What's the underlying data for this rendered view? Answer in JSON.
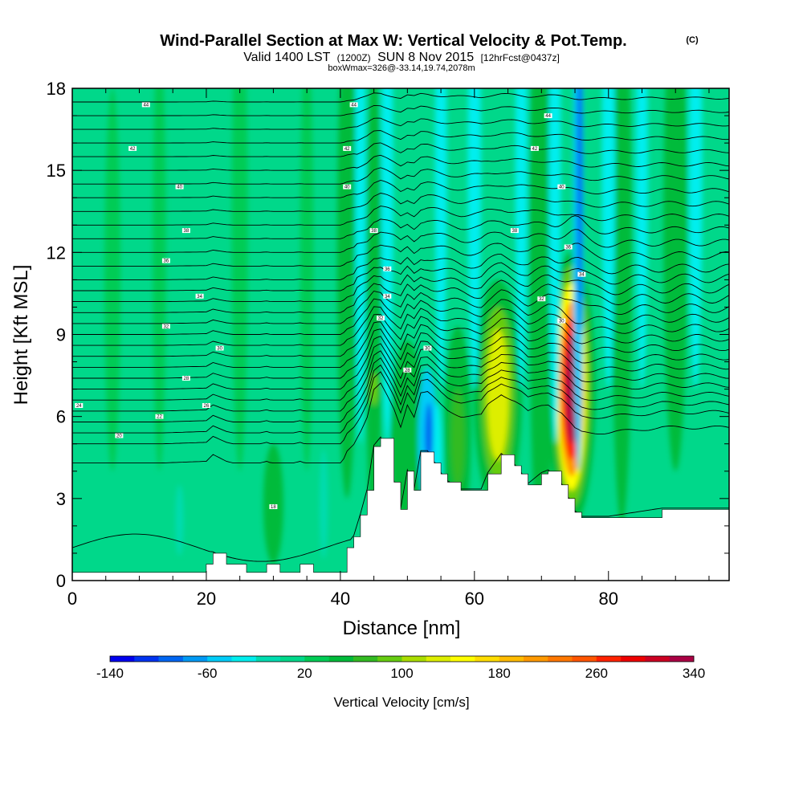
{
  "chart_data": {
    "type": "heatmap",
    "title": "Wind-Parallel Section at Max W: Vertical Velocity & Pot.Temp.",
    "title_mark": "(C)",
    "subtitle_parts": [
      "Valid 1400 LST",
      "(1200Z)",
      "SUN 8 Nov 2015",
      "[12hrFcst@0437z]"
    ],
    "subtitle2": "boxWmax=326@-33.14,19.74,2078m",
    "xlabel": "Distance [nm]",
    "ylabel": "Height [Kft MSL]",
    "xlim": [
      0,
      98
    ],
    "ylim": [
      0,
      18
    ],
    "x_ticks": [
      0,
      20,
      40,
      60,
      80
    ],
    "y_ticks": [
      0,
      3,
      6,
      9,
      12,
      15,
      18
    ],
    "colorbar": {
      "label": "Vertical Velocity [cm/s]",
      "tick_values": [
        -140,
        -60,
        20,
        100,
        180,
        260,
        340
      ],
      "levels": [
        -140,
        -120,
        -100,
        -80,
        -60,
        -40,
        -20,
        0,
        20,
        40,
        60,
        80,
        100,
        120,
        140,
        160,
        180,
        200,
        220,
        240,
        260,
        280,
        300,
        320,
        340
      ],
      "colors": [
        "#0000ee",
        "#0033f0",
        "#0066f2",
        "#0099f4",
        "#00ccf8",
        "#00eeee",
        "#00dcb0",
        "#00d88a",
        "#00cc55",
        "#00bb3a",
        "#33bb22",
        "#66cc11",
        "#aadd00",
        "#ddee00",
        "#ffff00",
        "#ffdd00",
        "#ffbb00",
        "#ff9900",
        "#ff7700",
        "#ff5500",
        "#ff2200",
        "#ee0000",
        "#cc0022",
        "#aa0044"
      ]
    },
    "terrain": {
      "unit": "Kft",
      "x": [
        0,
        20,
        21,
        23,
        26,
        29,
        31,
        34,
        36,
        39,
        40,
        41,
        42,
        43,
        44,
        45,
        46,
        48,
        49,
        50,
        51,
        52,
        53,
        54,
        55,
        56,
        58,
        61,
        62,
        64,
        66,
        67,
        68,
        70,
        71,
        73,
        74,
        75,
        76,
        80,
        88,
        98
      ],
      "y": [
        0.3,
        0.6,
        1.0,
        0.6,
        0.3,
        0.6,
        0.3,
        0.6,
        0.3,
        0.3,
        0.3,
        1.2,
        1.6,
        2.4,
        3.3,
        4.9,
        5.2,
        3.6,
        2.6,
        4.0,
        3.3,
        4.7,
        4.7,
        4.3,
        3.9,
        3.6,
        3.3,
        3.3,
        3.9,
        4.6,
        4.2,
        3.9,
        3.5,
        3.9,
        4.0,
        3.5,
        3.0,
        2.5,
        2.3,
        2.3,
        2.6,
        2.6
      ]
    },
    "vertical_velocity_cells": [
      {
        "x": 6,
        "y": 11,
        "w": 1.2,
        "h": 7,
        "v": 24
      },
      {
        "x": 13,
        "y": 12,
        "w": 1.0,
        "h": 8,
        "v": 24
      },
      {
        "x": 25,
        "y": 13,
        "w": 1.2,
        "h": 9,
        "v": 24
      },
      {
        "x": 35,
        "y": 12,
        "w": 1.0,
        "h": 8,
        "v": 24
      },
      {
        "x": 30,
        "y": 2.8,
        "w": 1.5,
        "h": 2.2,
        "v": 40
      },
      {
        "x": 41,
        "y": 12,
        "w": 1.5,
        "h": 9,
        "v": 40
      },
      {
        "x": 45,
        "y": 10,
        "w": 1.2,
        "h": 9,
        "v": 40
      },
      {
        "x": 50,
        "y": 5.2,
        "w": 2.5,
        "h": 3.6,
        "v": 40
      },
      {
        "x": 57.5,
        "y": 5.5,
        "w": 2.0,
        "h": 3.8,
        "v": 40
      },
      {
        "x": 63.5,
        "y": 6.8,
        "w": 3.6,
        "h": 4.2,
        "v": 40
      },
      {
        "x": 74.5,
        "y": 7.0,
        "w": 3.6,
        "h": 5.0,
        "v": 40
      },
      {
        "x": 70,
        "y": 12,
        "w": 1.8,
        "h": 12,
        "v": 40
      },
      {
        "x": 82,
        "y": 12,
        "w": 1.5,
        "h": 10,
        "v": 40
      },
      {
        "x": 90,
        "y": 13,
        "w": 1.8,
        "h": 9,
        "v": 40
      },
      {
        "x": 45,
        "y": 7.0,
        "w": 0.6,
        "h": 0.6,
        "v": 80
      },
      {
        "x": 57.5,
        "y": 5.2,
        "w": 1.0,
        "h": 1.8,
        "v": 60
      },
      {
        "x": 63.5,
        "y": 6.8,
        "w": 2.4,
        "h": 3.2,
        "v": 90
      },
      {
        "x": 63.5,
        "y": 6.8,
        "w": 1.6,
        "h": 2.4,
        "v": 130
      },
      {
        "x": 74.5,
        "y": 7.1,
        "w": 2.7,
        "h": 4.4,
        "v": 90
      },
      {
        "x": 74.5,
        "y": 7.1,
        "w": 2.2,
        "h": 3.8,
        "v": 150
      },
      {
        "x": 74.5,
        "y": 7.0,
        "w": 1.8,
        "h": 3.2,
        "v": 210
      },
      {
        "x": 74.5,
        "y": 7.0,
        "w": 1.4,
        "h": 2.6,
        "v": 270
      },
      {
        "x": 74.6,
        "y": 7.0,
        "w": 1.0,
        "h": 2.0,
        "v": 320
      },
      {
        "x": 16,
        "y": 2.2,
        "w": 0.6,
        "h": 1.3,
        "v": -10
      },
      {
        "x": 37.5,
        "y": 2.8,
        "w": 0.6,
        "h": 2.0,
        "v": -10
      },
      {
        "x": 43,
        "y": 14,
        "w": 0.8,
        "h": 9,
        "v": -30
      },
      {
        "x": 47,
        "y": 14,
        "w": 0.9,
        "h": 9,
        "v": -30
      },
      {
        "x": 53,
        "y": 5.2,
        "w": 1.4,
        "h": 2.6,
        "v": -50
      },
      {
        "x": 53.2,
        "y": 5.3,
        "w": 0.6,
        "h": 1.2,
        "v": -100
      },
      {
        "x": 54.5,
        "y": 4.5,
        "w": 0.7,
        "h": 2.0,
        "v": -40
      },
      {
        "x": 55,
        "y": 15,
        "w": 0.9,
        "h": 8,
        "v": -30
      },
      {
        "x": 60,
        "y": 15,
        "w": 1.0,
        "h": 8,
        "v": -30
      },
      {
        "x": 67,
        "y": 15,
        "w": 0.9,
        "h": 8,
        "v": -30
      },
      {
        "x": 72,
        "y": 15,
        "w": 0.9,
        "h": 10,
        "v": -40
      },
      {
        "x": 75.5,
        "y": 14,
        "w": 0.8,
        "h": 10,
        "v": -50
      },
      {
        "x": 75.7,
        "y": 15,
        "w": 0.4,
        "h": 6,
        "v": -100
      },
      {
        "x": 80,
        "y": 15,
        "w": 1.0,
        "h": 8,
        "v": -30
      },
      {
        "x": 85,
        "y": 15,
        "w": 0.9,
        "h": 8,
        "v": -30
      },
      {
        "x": 93,
        "y": 15,
        "w": 1.0,
        "h": 8,
        "v": -30
      }
    ],
    "isentropes": {
      "unit": "Kft",
      "base_heights": [
        1.2,
        4.3,
        5.0,
        5.4,
        5.8,
        6.2,
        6.6,
        7.0,
        7.4,
        7.8,
        8.2,
        8.6,
        9.0,
        9.4,
        9.8,
        10.2,
        10.6,
        11.0,
        11.5,
        12.0,
        12.5,
        13.0,
        13.5,
        14.0,
        14.5,
        15.0,
        15.5,
        16.0,
        16.5,
        17.0,
        17.5
      ]
    },
    "isentrope_labels": [
      {
        "x": 11,
        "y": 17.4,
        "text": "44"
      },
      {
        "x": 9,
        "y": 15.8,
        "text": "42"
      },
      {
        "x": 16,
        "y": 14.4,
        "text": "40"
      },
      {
        "x": 17,
        "y": 12.8,
        "text": "38"
      },
      {
        "x": 14,
        "y": 11.7,
        "text": "36"
      },
      {
        "x": 19,
        "y": 10.4,
        "text": "34"
      },
      {
        "x": 14,
        "y": 9.3,
        "text": "32"
      },
      {
        "x": 22,
        "y": 8.5,
        "text": "30"
      },
      {
        "x": 17,
        "y": 7.4,
        "text": "28"
      },
      {
        "x": 20,
        "y": 6.4,
        "text": "26"
      },
      {
        "x": 1,
        "y": 6.4,
        "text": "24"
      },
      {
        "x": 13,
        "y": 6.0,
        "text": "22"
      },
      {
        "x": 7,
        "y": 5.3,
        "text": "20"
      },
      {
        "x": 30,
        "y": 2.7,
        "text": "18"
      },
      {
        "x": 42,
        "y": 17.4,
        "text": "44"
      },
      {
        "x": 41,
        "y": 15.8,
        "text": "42"
      },
      {
        "x": 41,
        "y": 14.4,
        "text": "40"
      },
      {
        "x": 45,
        "y": 12.8,
        "text": "38"
      },
      {
        "x": 47,
        "y": 11.4,
        "text": "36"
      },
      {
        "x": 47,
        "y": 10.4,
        "text": "34"
      },
      {
        "x": 46,
        "y": 9.6,
        "text": "32"
      },
      {
        "x": 53,
        "y": 8.5,
        "text": "30"
      },
      {
        "x": 50,
        "y": 7.7,
        "text": "28"
      },
      {
        "x": 71,
        "y": 17.0,
        "text": "44"
      },
      {
        "x": 69,
        "y": 15.8,
        "text": "42"
      },
      {
        "x": 73,
        "y": 14.4,
        "text": "40"
      },
      {
        "x": 66,
        "y": 12.8,
        "text": "38"
      },
      {
        "x": 74,
        "y": 12.2,
        "text": "36"
      },
      {
        "x": 76,
        "y": 11.2,
        "text": "34"
      },
      {
        "x": 70,
        "y": 10.3,
        "text": "32"
      },
      {
        "x": 73,
        "y": 9.5,
        "text": "30"
      }
    ]
  }
}
